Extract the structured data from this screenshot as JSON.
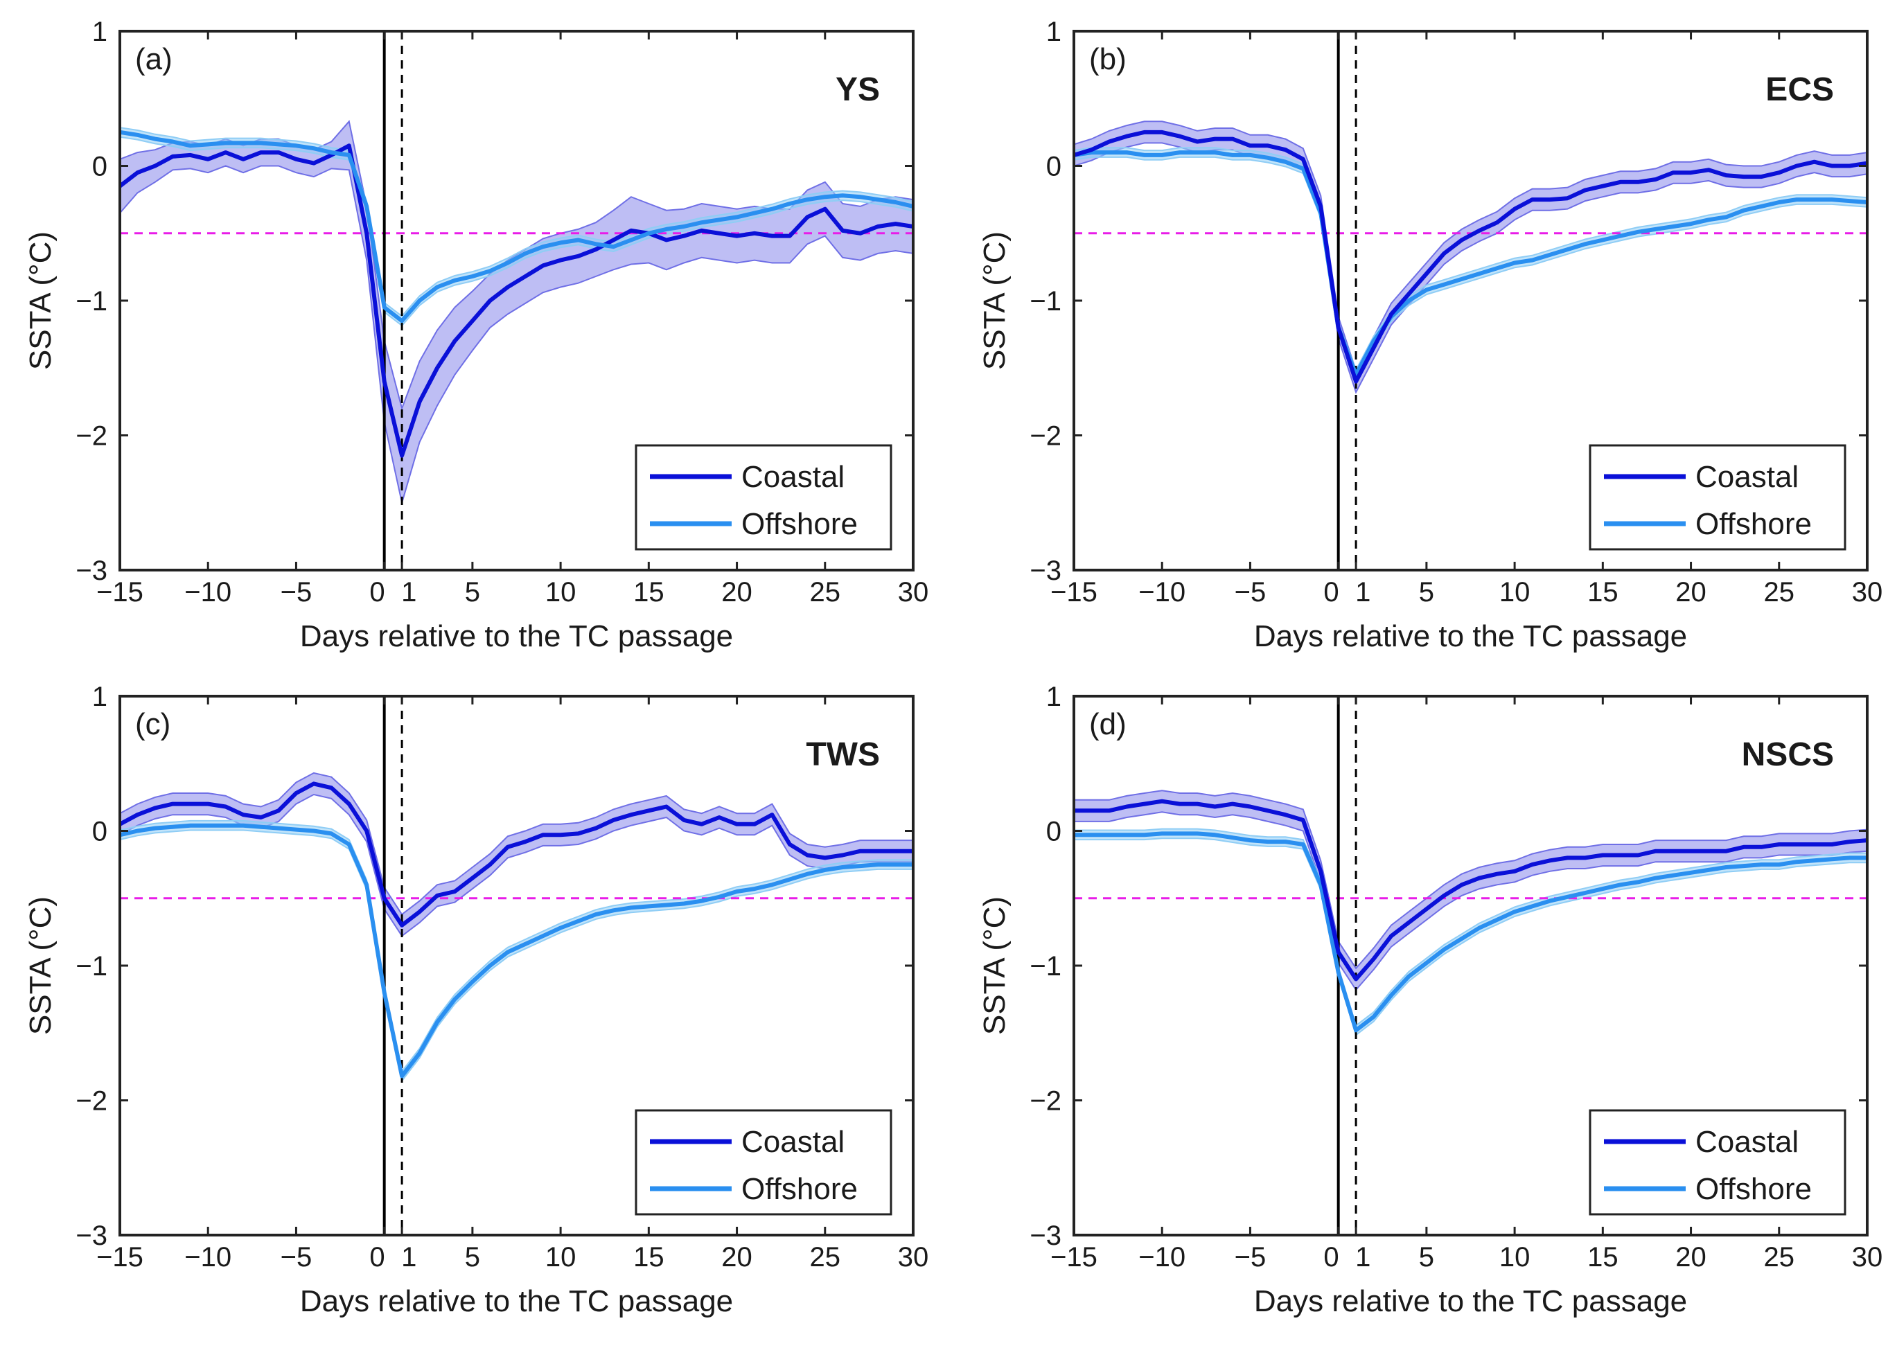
{
  "figure": {
    "colors": {
      "coastal": "#0a10d8",
      "coastal_band": "#6f6fe6",
      "offshore": "#2a8ff0",
      "offshore_band": "#8fcdf5",
      "threshold": "#e81ce8",
      "axes": "#222222"
    }
  },
  "chart_data": [
    {
      "type": "line",
      "panel_label": "(a)",
      "region": "YS",
      "xlabel": "Days relative to the TC passage",
      "ylabel": "SSTA (°C)",
      "xlim": [
        -15,
        30
      ],
      "ylim": [
        -3,
        1
      ],
      "xticks": [
        -15,
        -10,
        -5,
        0,
        1,
        5,
        10,
        15,
        20,
        25,
        30
      ],
      "xtick_labels": [
        "−15",
        "−10",
        "−5",
        "0",
        "1",
        "5",
        "10",
        "15",
        "20",
        "25",
        "30"
      ],
      "yticks": [
        -3,
        -2,
        -1,
        0,
        1
      ],
      "ytick_labels": [
        "−3",
        "−2",
        "−1",
        "0",
        "1"
      ],
      "vline_solid": 0,
      "vline_dashed": 1,
      "hline_dashed": -0.5,
      "legend": [
        "Coastal",
        "Offshore"
      ],
      "series": [
        {
          "name": "Coastal",
          "x": [
            -15,
            -14,
            -13,
            -12,
            -11,
            -10,
            -9,
            -8,
            -7,
            -6,
            -5,
            -4,
            -3,
            -2,
            -1,
            0,
            1,
            2,
            3,
            4,
            5,
            6,
            7,
            8,
            9,
            10,
            11,
            12,
            13,
            14,
            15,
            16,
            17,
            18,
            19,
            20,
            21,
            22,
            23,
            24,
            25,
            26,
            27,
            28,
            29,
            30
          ],
          "values": [
            -0.15,
            -0.05,
            0.0,
            0.07,
            0.08,
            0.05,
            0.1,
            0.05,
            0.1,
            0.1,
            0.05,
            0.02,
            0.08,
            0.15,
            -0.5,
            -1.6,
            -2.15,
            -1.75,
            -1.5,
            -1.3,
            -1.15,
            -1.0,
            -0.9,
            -0.82,
            -0.74,
            -0.7,
            -0.67,
            -0.62,
            -0.55,
            -0.48,
            -0.5,
            -0.55,
            -0.52,
            -0.48,
            -0.5,
            -0.52,
            -0.5,
            -0.52,
            -0.52,
            -0.38,
            -0.32,
            -0.48,
            -0.5,
            -0.45,
            -0.43,
            -0.45
          ],
          "band": [
            0.2,
            0.15,
            0.12,
            0.1,
            0.1,
            0.1,
            0.1,
            0.1,
            0.1,
            0.1,
            0.1,
            0.1,
            0.1,
            0.18,
            0.2,
            0.3,
            0.35,
            0.3,
            0.28,
            0.25,
            0.22,
            0.2,
            0.2,
            0.2,
            0.2,
            0.2,
            0.2,
            0.2,
            0.22,
            0.25,
            0.22,
            0.22,
            0.2,
            0.2,
            0.2,
            0.2,
            0.2,
            0.2,
            0.2,
            0.2,
            0.2,
            0.2,
            0.2,
            0.2,
            0.2,
            0.2
          ]
        },
        {
          "name": "Offshore",
          "x": [
            -15,
            -14,
            -13,
            -12,
            -11,
            -10,
            -9,
            -8,
            -7,
            -6,
            -5,
            -4,
            -3,
            -2,
            -1,
            0,
            1,
            2,
            3,
            4,
            5,
            6,
            7,
            8,
            9,
            10,
            11,
            12,
            13,
            14,
            15,
            16,
            17,
            18,
            19,
            20,
            21,
            22,
            23,
            24,
            25,
            26,
            27,
            28,
            29,
            30
          ],
          "values": [
            0.25,
            0.23,
            0.2,
            0.18,
            0.15,
            0.16,
            0.17,
            0.17,
            0.17,
            0.16,
            0.15,
            0.13,
            0.1,
            0.08,
            -0.3,
            -1.05,
            -1.15,
            -1.0,
            -0.9,
            -0.85,
            -0.82,
            -0.78,
            -0.72,
            -0.65,
            -0.6,
            -0.57,
            -0.55,
            -0.58,
            -0.6,
            -0.55,
            -0.5,
            -0.47,
            -0.45,
            -0.42,
            -0.4,
            -0.38,
            -0.35,
            -0.32,
            -0.28,
            -0.25,
            -0.23,
            -0.22,
            -0.23,
            -0.25,
            -0.27,
            -0.3
          ]
        }
      ]
    },
    {
      "type": "line",
      "panel_label": "(b)",
      "region": "ECS",
      "xlabel": "Days relative to the TC passage",
      "ylabel": "SSTA (°C)",
      "xlim": [
        -15,
        30
      ],
      "ylim": [
        -3,
        1
      ],
      "xticks": [
        -15,
        -10,
        -5,
        0,
        1,
        5,
        10,
        15,
        20,
        25,
        30
      ],
      "xtick_labels": [
        "−15",
        "−10",
        "−5",
        "0",
        "1",
        "5",
        "10",
        "15",
        "20",
        "25",
        "30"
      ],
      "yticks": [
        -3,
        -2,
        -1,
        0,
        1
      ],
      "ytick_labels": [
        "−3",
        "−2",
        "−1",
        "0",
        "1"
      ],
      "vline_solid": 0,
      "vline_dashed": 1,
      "hline_dashed": -0.5,
      "legend": [
        "Coastal",
        "Offshore"
      ],
      "series": [
        {
          "name": "Coastal",
          "x": [
            -15,
            -14,
            -13,
            -12,
            -11,
            -10,
            -9,
            -8,
            -7,
            -6,
            -5,
            -4,
            -3,
            -2,
            -1,
            0,
            1,
            2,
            3,
            4,
            5,
            6,
            7,
            8,
            9,
            10,
            11,
            12,
            13,
            14,
            15,
            16,
            17,
            18,
            19,
            20,
            21,
            22,
            23,
            24,
            25,
            26,
            27,
            28,
            29,
            30
          ],
          "values": [
            0.08,
            0.12,
            0.18,
            0.22,
            0.25,
            0.25,
            0.22,
            0.18,
            0.2,
            0.2,
            0.15,
            0.15,
            0.12,
            0.05,
            -0.3,
            -1.2,
            -1.6,
            -1.35,
            -1.1,
            -0.95,
            -0.8,
            -0.65,
            -0.55,
            -0.48,
            -0.42,
            -0.32,
            -0.25,
            -0.25,
            -0.24,
            -0.18,
            -0.15,
            -0.12,
            -0.12,
            -0.1,
            -0.05,
            -0.05,
            -0.03,
            -0.07,
            -0.08,
            -0.08,
            -0.05,
            0.0,
            0.03,
            0.0,
            0.0,
            0.02
          ]
        },
        {
          "name": "Offshore",
          "x": [
            -15,
            -14,
            -13,
            -12,
            -11,
            -10,
            -9,
            -8,
            -7,
            -6,
            -5,
            -4,
            -3,
            -2,
            -1,
            0,
            1,
            2,
            3,
            4,
            5,
            6,
            7,
            8,
            9,
            10,
            11,
            12,
            13,
            14,
            15,
            16,
            17,
            18,
            19,
            20,
            21,
            22,
            23,
            24,
            25,
            26,
            27,
            28,
            29,
            30
          ],
          "values": [
            0.08,
            0.1,
            0.1,
            0.1,
            0.08,
            0.08,
            0.1,
            0.1,
            0.1,
            0.08,
            0.08,
            0.06,
            0.03,
            -0.02,
            -0.35,
            -1.2,
            -1.55,
            -1.3,
            -1.12,
            -1.0,
            -0.92,
            -0.88,
            -0.84,
            -0.8,
            -0.76,
            -0.72,
            -0.7,
            -0.66,
            -0.62,
            -0.58,
            -0.55,
            -0.52,
            -0.49,
            -0.47,
            -0.45,
            -0.43,
            -0.4,
            -0.38,
            -0.33,
            -0.3,
            -0.27,
            -0.25,
            -0.25,
            -0.25,
            -0.26,
            -0.27
          ]
        }
      ]
    },
    {
      "type": "line",
      "panel_label": "(c)",
      "region": "TWS",
      "xlabel": "Days relative to the TC passage",
      "ylabel": "SSTA (°C)",
      "xlim": [
        -15,
        30
      ],
      "ylim": [
        -3,
        1
      ],
      "xticks": [
        -15,
        -10,
        -5,
        0,
        1,
        5,
        10,
        15,
        20,
        25,
        30
      ],
      "xtick_labels": [
        "−15",
        "−10",
        "−5",
        "0",
        "1",
        "5",
        "10",
        "15",
        "20",
        "25",
        "30"
      ],
      "yticks": [
        -3,
        -2,
        -1,
        0,
        1
      ],
      "ytick_labels": [
        "−3",
        "−2",
        "−1",
        "0",
        "1"
      ],
      "vline_solid": 0,
      "vline_dashed": 1,
      "hline_dashed": -0.5,
      "legend": [
        "Coastal",
        "Offshore"
      ],
      "series": [
        {
          "name": "Coastal",
          "x": [
            -15,
            -14,
            -13,
            -12,
            -11,
            -10,
            -9,
            -8,
            -7,
            -6,
            -5,
            -4,
            -3,
            -2,
            -1,
            0,
            1,
            2,
            3,
            4,
            5,
            6,
            7,
            8,
            9,
            10,
            11,
            12,
            13,
            14,
            15,
            16,
            17,
            18,
            19,
            20,
            21,
            22,
            23,
            24,
            25,
            26,
            27,
            28,
            29,
            30
          ],
          "values": [
            0.05,
            0.12,
            0.17,
            0.2,
            0.2,
            0.2,
            0.18,
            0.12,
            0.1,
            0.15,
            0.28,
            0.35,
            0.32,
            0.2,
            0.0,
            -0.5,
            -0.7,
            -0.6,
            -0.48,
            -0.45,
            -0.35,
            -0.25,
            -0.12,
            -0.08,
            -0.03,
            -0.03,
            -0.02,
            0.02,
            0.08,
            0.12,
            0.15,
            0.18,
            0.08,
            0.05,
            0.1,
            0.05,
            0.05,
            0.12,
            -0.1,
            -0.18,
            -0.2,
            -0.18,
            -0.15,
            -0.15,
            -0.15,
            -0.15
          ]
        },
        {
          "name": "Offshore",
          "x": [
            -15,
            -14,
            -13,
            -12,
            -11,
            -10,
            -9,
            -8,
            -7,
            -6,
            -5,
            -4,
            -3,
            -2,
            -1,
            0,
            1,
            2,
            3,
            4,
            5,
            6,
            7,
            8,
            9,
            10,
            11,
            12,
            13,
            14,
            15,
            16,
            17,
            18,
            19,
            20,
            21,
            22,
            23,
            24,
            25,
            26,
            27,
            28,
            29,
            30
          ],
          "values": [
            -0.03,
            0.0,
            0.02,
            0.03,
            0.04,
            0.04,
            0.04,
            0.04,
            0.03,
            0.02,
            0.01,
            0.0,
            -0.02,
            -0.1,
            -0.4,
            -1.2,
            -1.82,
            -1.65,
            -1.42,
            -1.25,
            -1.12,
            -1.0,
            -0.9,
            -0.84,
            -0.78,
            -0.72,
            -0.67,
            -0.62,
            -0.59,
            -0.57,
            -0.56,
            -0.55,
            -0.54,
            -0.52,
            -0.49,
            -0.45,
            -0.43,
            -0.4,
            -0.36,
            -0.32,
            -0.29,
            -0.27,
            -0.26,
            -0.25,
            -0.25,
            -0.25
          ]
        }
      ]
    },
    {
      "type": "line",
      "panel_label": "(d)",
      "region": "NSCS",
      "xlabel": "Days relative to the TC passage",
      "ylabel": "SSTA (°C)",
      "xlim": [
        -15,
        30
      ],
      "ylim": [
        -3,
        1
      ],
      "xticks": [
        -15,
        -10,
        -5,
        0,
        1,
        5,
        10,
        15,
        20,
        25,
        30
      ],
      "xtick_labels": [
        "−15",
        "−10",
        "−5",
        "0",
        "1",
        "5",
        "10",
        "15",
        "20",
        "25",
        "30"
      ],
      "yticks": [
        -3,
        -2,
        -1,
        0,
        1
      ],
      "ytick_labels": [
        "−3",
        "−2",
        "−1",
        "0",
        "1"
      ],
      "vline_solid": 0,
      "vline_dashed": 1,
      "hline_dashed": -0.5,
      "legend": [
        "Coastal",
        "Offshore"
      ],
      "series": [
        {
          "name": "Coastal",
          "x": [
            -15,
            -14,
            -13,
            -12,
            -11,
            -10,
            -9,
            -8,
            -7,
            -6,
            -5,
            -4,
            -3,
            -2,
            -1,
            0,
            1,
            2,
            3,
            4,
            5,
            6,
            7,
            8,
            9,
            10,
            11,
            12,
            13,
            14,
            15,
            16,
            17,
            18,
            19,
            20,
            21,
            22,
            23,
            24,
            25,
            26,
            27,
            28,
            29,
            30
          ],
          "values": [
            0.15,
            0.15,
            0.15,
            0.18,
            0.2,
            0.22,
            0.2,
            0.2,
            0.18,
            0.2,
            0.18,
            0.15,
            0.12,
            0.08,
            -0.3,
            -0.9,
            -1.1,
            -0.95,
            -0.78,
            -0.68,
            -0.58,
            -0.48,
            -0.4,
            -0.35,
            -0.32,
            -0.3,
            -0.25,
            -0.22,
            -0.2,
            -0.2,
            -0.18,
            -0.18,
            -0.18,
            -0.15,
            -0.15,
            -0.15,
            -0.15,
            -0.15,
            -0.12,
            -0.12,
            -0.1,
            -0.1,
            -0.1,
            -0.1,
            -0.08,
            -0.07
          ]
        },
        {
          "name": "Offshore",
          "x": [
            -15,
            -14,
            -13,
            -12,
            -11,
            -10,
            -9,
            -8,
            -7,
            -6,
            -5,
            -4,
            -3,
            -2,
            -1,
            0,
            1,
            2,
            3,
            4,
            5,
            6,
            7,
            8,
            9,
            10,
            11,
            12,
            13,
            14,
            15,
            16,
            17,
            18,
            19,
            20,
            21,
            22,
            23,
            24,
            25,
            26,
            27,
            28,
            29,
            30
          ],
          "values": [
            -0.03,
            -0.03,
            -0.03,
            -0.03,
            -0.03,
            -0.02,
            -0.02,
            -0.02,
            -0.03,
            -0.05,
            -0.07,
            -0.08,
            -0.08,
            -0.1,
            -0.4,
            -1.05,
            -1.48,
            -1.38,
            -1.22,
            -1.08,
            -0.98,
            -0.88,
            -0.8,
            -0.72,
            -0.66,
            -0.6,
            -0.56,
            -0.52,
            -0.49,
            -0.46,
            -0.43,
            -0.4,
            -0.38,
            -0.35,
            -0.33,
            -0.31,
            -0.29,
            -0.27,
            -0.26,
            -0.25,
            -0.25,
            -0.23,
            -0.22,
            -0.21,
            -0.2,
            -0.2
          ]
        }
      ]
    }
  ]
}
